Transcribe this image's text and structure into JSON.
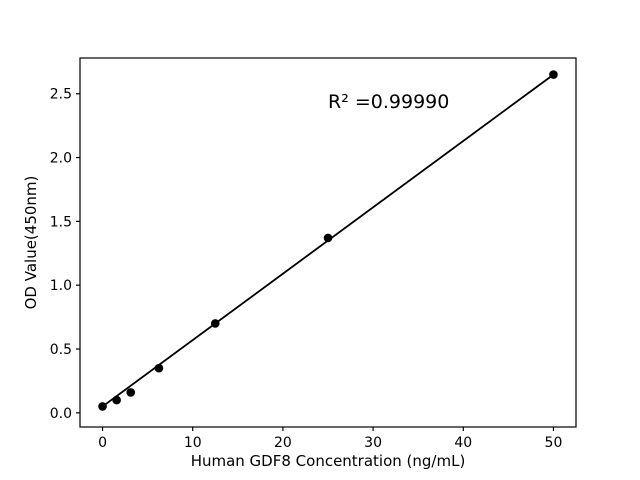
{
  "figure": {
    "background": "#ffffff",
    "foreground": "#000000"
  },
  "chart_data": {
    "type": "scatter",
    "title": "",
    "xlabel": "Human GDF8 Concentration (ng/mL)",
    "ylabel": "OD Value(450nm)",
    "series": [
      {
        "name": "standard-curve-points",
        "x": [
          0,
          1.5625,
          3.125,
          6.25,
          12.5,
          25,
          50
        ],
        "y": [
          0.05,
          0.1,
          0.16,
          0.35,
          0.7,
          1.37,
          2.65
        ]
      }
    ],
    "fit_line": {
      "x1": 0,
      "y1": 0.05,
      "x2": 50,
      "y2": 2.65
    },
    "annotation": {
      "text": "R² =0.99990",
      "x": 25.0,
      "y": 2.39
    },
    "xticks": {
      "values": [
        0,
        10,
        20,
        30,
        40,
        50
      ],
      "labels": [
        "0",
        "10",
        "20",
        "30",
        "40",
        "50"
      ]
    },
    "yticks": {
      "values": [
        0,
        0.5,
        1.0,
        1.5,
        2.0,
        2.5
      ],
      "labels": [
        "0.0",
        "0.5",
        "1.0",
        "1.5",
        "2.0",
        "2.5"
      ]
    },
    "xlim": [
      -2.5,
      52.5
    ],
    "ylim": [
      -0.111,
      2.78
    ],
    "grid": false,
    "legend": null,
    "marker_color": "#000000",
    "line_color": "#000000",
    "axis_color": "#000000"
  }
}
